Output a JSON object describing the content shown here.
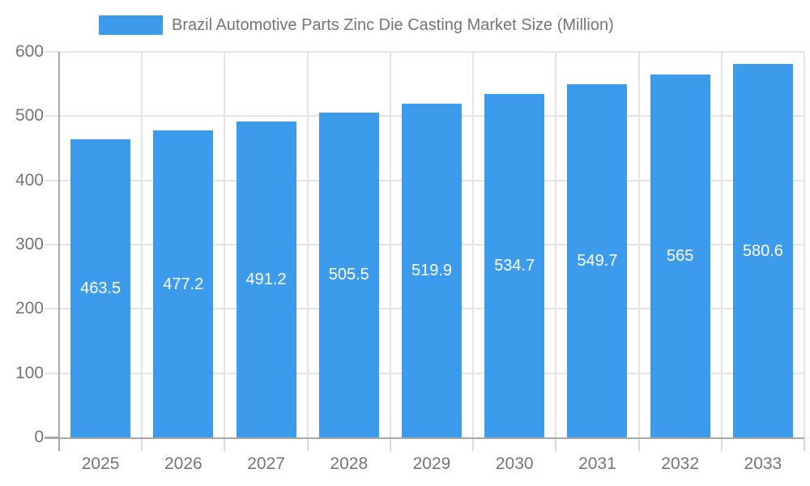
{
  "legend": {
    "label": "Brazil Automotive Parts Zinc Die Casting Market Size (Million)"
  },
  "chart_data": {
    "type": "bar",
    "title": "Brazil Automotive Parts Zinc Die Casting Market Size (Million)",
    "series_name": "Brazil Automotive Parts Zinc Die Casting Market Size (Million)",
    "categories": [
      "2025",
      "2026",
      "2027",
      "2028",
      "2029",
      "2030",
      "2031",
      "2032",
      "2033"
    ],
    "values": [
      463.5,
      477.2,
      491.2,
      505.5,
      519.9,
      534.7,
      549.7,
      565,
      580.6
    ],
    "value_labels": [
      "463.5",
      "477.2",
      "491.2",
      "505.5",
      "519.9",
      "534.7",
      "549.7",
      "565",
      "580.6"
    ],
    "xlabel": "",
    "ylabel": "",
    "ylim": [
      0,
      600
    ],
    "y_tick_interval": 100,
    "y_tick_labels": [
      "0",
      "100",
      "200",
      "300",
      "400",
      "500",
      "600"
    ],
    "grid": true,
    "legend_position": "top",
    "value_label_position": "inside-middle"
  },
  "colors": {
    "bar": "#3D9BEC",
    "value_label_text": "#ffffff",
    "axis_text": "#757575",
    "gridline": "#e4e4e4",
    "axis_line": "#a8a8a8",
    "boundary_tick": "#d9d9d9",
    "background": "#ffffff"
  }
}
